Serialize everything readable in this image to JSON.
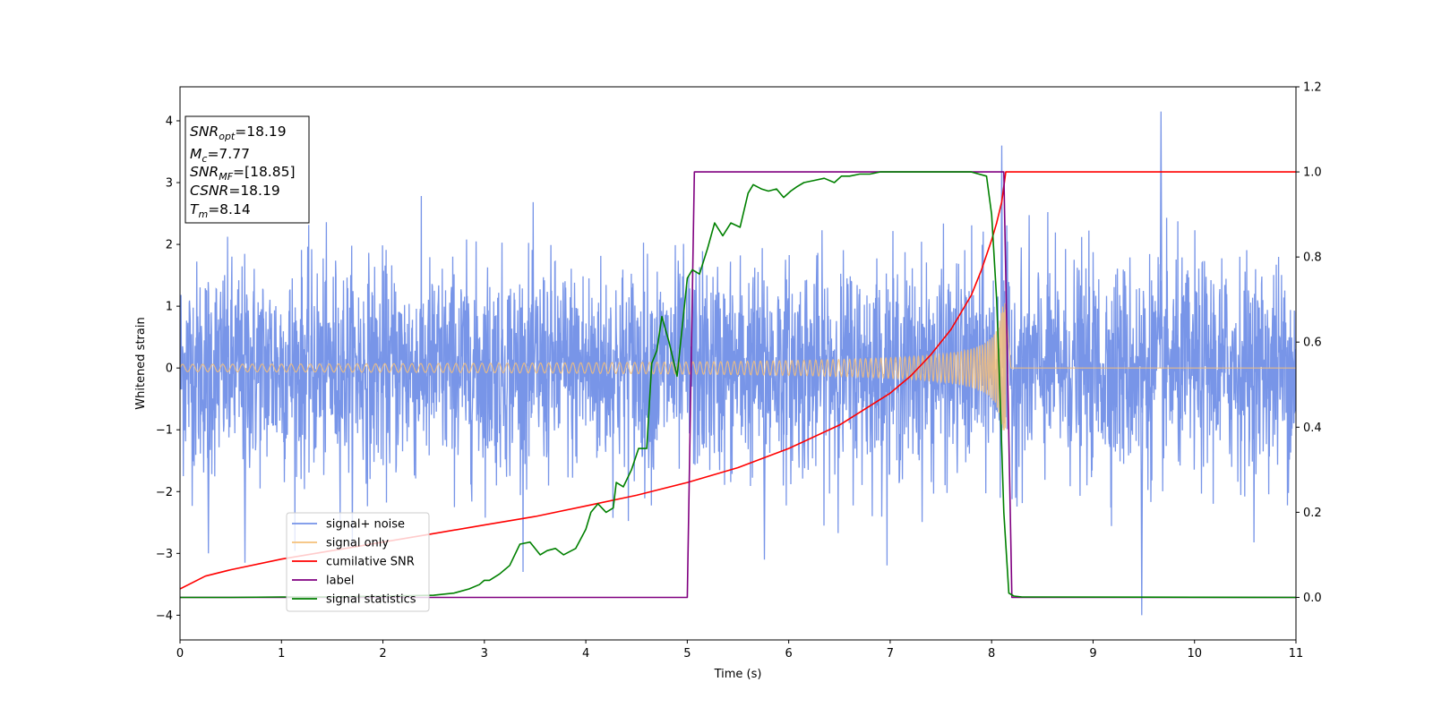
{
  "chart_data": {
    "type": "line",
    "xlabel": "Time (s)",
    "ylabel": "Whitened strain",
    "xlim": [
      0,
      11
    ],
    "ylim_left": [
      -4.4,
      4.55
    ],
    "ylim_right": [
      -0.1,
      1.2
    ],
    "xticks": [
      "0",
      "1",
      "2",
      "3",
      "4",
      "5",
      "6",
      "7",
      "8",
      "9",
      "10",
      "11"
    ],
    "yticks_left": [
      "−4",
      "−3",
      "−2",
      "−1",
      "0",
      "1",
      "2",
      "3",
      "4"
    ],
    "yticks_right": [
      "0.0",
      "0.2",
      "0.4",
      "0.6",
      "0.8",
      "1.0",
      "1.2"
    ],
    "grid": false,
    "legend_position": "lower-left",
    "annotation": {
      "lines": [
        {
          "base": "SNR",
          "sub": "opt",
          "rest": "=18.19"
        },
        {
          "base": "M",
          "sub": "c",
          "rest": "=7.77"
        },
        {
          "base": "SNR",
          "sub": "MF",
          "rest": "=[18.85]"
        },
        {
          "base": "CSNR",
          "sub": "",
          "rest": "=18.19"
        },
        {
          "base": "T",
          "sub": "m",
          "rest": "=8.14"
        }
      ]
    },
    "series": [
      {
        "name": "signal+ noise",
        "axis": "left",
        "color": "#7593e8",
        "kind": "noise",
        "noise_std": 0.85,
        "spike_peak_max": 4.15,
        "spike_peak_min": -4.0
      },
      {
        "name": "signal only",
        "axis": "left",
        "color": "#f5c07a",
        "kind": "chirp",
        "start": 0,
        "end": 8.14,
        "amplitude_start": 0.06,
        "amplitude_end": 1.05,
        "frequency_start": 10
      },
      {
        "name": "cumilative SNR",
        "axis": "right",
        "color": "#ff0000",
        "kind": "line",
        "x": [
          0,
          0.25,
          0.5,
          1,
          1.5,
          2,
          2.5,
          3,
          3.5,
          4,
          4.5,
          5,
          5.5,
          6,
          6.5,
          7,
          7.2,
          7.4,
          7.6,
          7.8,
          7.9,
          8.0,
          8.05,
          8.1,
          8.14,
          8.2,
          11
        ],
        "y": [
          0.02,
          0.05,
          0.065,
          0.09,
          0.11,
          0.13,
          0.15,
          0.17,
          0.19,
          0.215,
          0.24,
          0.27,
          0.305,
          0.35,
          0.405,
          0.48,
          0.52,
          0.57,
          0.63,
          0.71,
          0.77,
          0.84,
          0.88,
          0.93,
          1.0,
          1.0,
          1.0
        ]
      },
      {
        "name": "label",
        "axis": "right",
        "color": "#800080",
        "kind": "line",
        "x": [
          0,
          5.0,
          5.07,
          8.12,
          8.2,
          11
        ],
        "y": [
          0,
          0,
          1,
          1,
          0,
          0
        ]
      },
      {
        "name": "signal statistics",
        "axis": "right",
        "color": "#008000",
        "kind": "line",
        "x": [
          0,
          0.5,
          1,
          1.5,
          2,
          2.5,
          2.7,
          2.85,
          2.95,
          3.0,
          3.05,
          3.15,
          3.25,
          3.35,
          3.45,
          3.55,
          3.62,
          3.7,
          3.78,
          3.9,
          4.0,
          4.05,
          4.12,
          4.2,
          4.27,
          4.3,
          4.37,
          4.45,
          4.52,
          4.6,
          4.65,
          4.7,
          4.75,
          4.82,
          4.9,
          5.0,
          5.05,
          5.12,
          5.2,
          5.27,
          5.35,
          5.43,
          5.52,
          5.6,
          5.65,
          5.73,
          5.8,
          5.88,
          5.95,
          6.02,
          6.08,
          6.15,
          6.25,
          6.35,
          6.45,
          6.52,
          6.6,
          6.7,
          6.8,
          6.9,
          7.0,
          7.2,
          7.4,
          7.6,
          7.8,
          7.95,
          8.0,
          8.05,
          8.08,
          8.12,
          8.17,
          8.22,
          8.3,
          11
        ],
        "y": [
          0,
          0,
          0.001,
          0.001,
          0.003,
          0.005,
          0.01,
          0.02,
          0.03,
          0.04,
          0.04,
          0.055,
          0.075,
          0.125,
          0.13,
          0.1,
          0.11,
          0.115,
          0.1,
          0.115,
          0.16,
          0.2,
          0.22,
          0.2,
          0.21,
          0.27,
          0.26,
          0.3,
          0.35,
          0.35,
          0.55,
          0.58,
          0.66,
          0.6,
          0.52,
          0.75,
          0.77,
          0.76,
          0.82,
          0.88,
          0.85,
          0.88,
          0.87,
          0.95,
          0.97,
          0.96,
          0.955,
          0.96,
          0.94,
          0.955,
          0.965,
          0.975,
          0.98,
          0.985,
          0.975,
          0.99,
          0.99,
          0.995,
          0.995,
          1.0,
          1.0,
          1.0,
          1.0,
          1.0,
          1.0,
          0.99,
          0.9,
          0.7,
          0.5,
          0.2,
          0.01,
          0.003,
          0.001,
          0
        ]
      }
    ]
  }
}
